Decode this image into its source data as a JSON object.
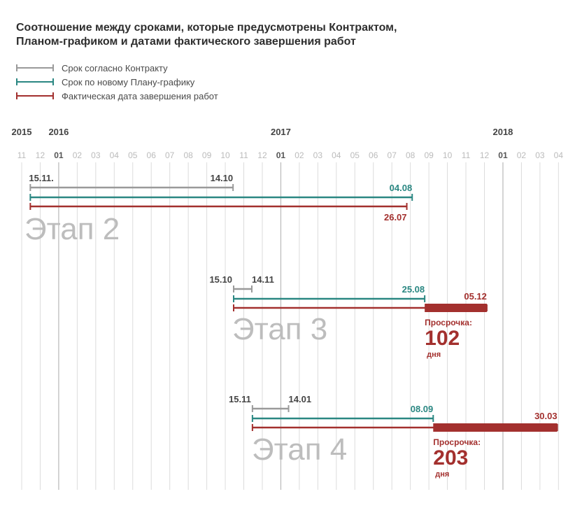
{
  "title_lines": [
    "Соотношение между сроками, которые предусмотрены Контрактом,",
    "Планом-графиком и датами фактического завершения работ"
  ],
  "colors": {
    "contract": "#9a9a9a",
    "plan": "#2a8782",
    "actual": "#a3302e",
    "grid": "#dcdcdc",
    "month": "#bbbbbb",
    "year": "#444444",
    "stage": "#bdbdbd"
  },
  "chart_data": {
    "type": "gantt",
    "title": "Соотношение между сроками, которые предусмотрены Контрактом, Планом-графиком и датами фактического завершения работ",
    "legend": [
      {
        "key": "contract",
        "label": "Срок согласно Контракту"
      },
      {
        "key": "plan",
        "label": "Срок по новому Плану-графику"
      },
      {
        "key": "actual",
        "label": "Фактическая дата завершения работ"
      }
    ],
    "legend_position": "top-left",
    "x_axis": {
      "start": "2015-11-01",
      "end": "2018-04-01",
      "year_labels": [
        {
          "label": "2015",
          "date": "2015-11-01"
        },
        {
          "label": "2016",
          "date": "2016-01-01"
        },
        {
          "label": "2017",
          "date": "2017-01-01"
        },
        {
          "label": "2018",
          "date": "2018-01-01"
        }
      ],
      "month_ticks": [
        {
          "label": "11",
          "date": "2015-11-01",
          "jan": false
        },
        {
          "label": "12",
          "date": "2015-12-01",
          "jan": false
        },
        {
          "label": "01",
          "date": "2016-01-01",
          "jan": true
        },
        {
          "label": "02",
          "date": "2016-02-01",
          "jan": false
        },
        {
          "label": "03",
          "date": "2016-03-01",
          "jan": false
        },
        {
          "label": "04",
          "date": "2016-04-01",
          "jan": false
        },
        {
          "label": "05",
          "date": "2016-05-01",
          "jan": false
        },
        {
          "label": "06",
          "date": "2016-06-01",
          "jan": false
        },
        {
          "label": "07",
          "date": "2016-07-01",
          "jan": false
        },
        {
          "label": "08",
          "date": "2016-08-01",
          "jan": false
        },
        {
          "label": "09",
          "date": "2016-09-01",
          "jan": false
        },
        {
          "label": "10",
          "date": "2016-10-01",
          "jan": false
        },
        {
          "label": "11",
          "date": "2016-11-01",
          "jan": false
        },
        {
          "label": "12",
          "date": "2016-12-01",
          "jan": false
        },
        {
          "label": "01",
          "date": "2017-01-01",
          "jan": true
        },
        {
          "label": "02",
          "date": "2017-02-01",
          "jan": false
        },
        {
          "label": "03",
          "date": "2017-03-01",
          "jan": false
        },
        {
          "label": "04",
          "date": "2017-04-01",
          "jan": false
        },
        {
          "label": "05",
          "date": "2017-05-01",
          "jan": false
        },
        {
          "label": "06",
          "date": "2017-06-01",
          "jan": false
        },
        {
          "label": "07",
          "date": "2017-07-01",
          "jan": false
        },
        {
          "label": "08",
          "date": "2017-08-01",
          "jan": false
        },
        {
          "label": "09",
          "date": "2017-09-01",
          "jan": false
        },
        {
          "label": "10",
          "date": "2017-10-01",
          "jan": false
        },
        {
          "label": "11",
          "date": "2017-11-01",
          "jan": false
        },
        {
          "label": "12",
          "date": "2017-12-01",
          "jan": false
        },
        {
          "label": "01",
          "date": "2018-01-01",
          "jan": true
        },
        {
          "label": "02",
          "date": "2018-02-01",
          "jan": false
        },
        {
          "label": "03",
          "date": "2018-03-01",
          "jan": false
        },
        {
          "label": "04",
          "date": "2018-04-01",
          "jan": false
        }
      ],
      "grid": true
    },
    "stages": [
      {
        "name": "Этап 2",
        "contract": {
          "start": "2015-11-15",
          "end": "2016-10-14",
          "start_label": "15.11.",
          "end_label": "14.10"
        },
        "plan": {
          "start": "2015-11-15",
          "end": "2017-08-04",
          "end_label": "04.08"
        },
        "actual": {
          "start": "2015-11-15",
          "end": "2017-07-26",
          "end_label": "26.07"
        },
        "delay": null
      },
      {
        "name": "Этап 3",
        "contract": {
          "start": "2016-10-15",
          "end": "2016-11-14",
          "start_label": "15.10",
          "end_label": "14.11"
        },
        "plan": {
          "start": "2016-10-15",
          "end": "2017-08-25",
          "end_label": "25.08"
        },
        "actual": {
          "start": "2016-10-15",
          "end": "2017-12-05",
          "end_label": "05.12"
        },
        "delay": {
          "from": "2017-08-25",
          "to": "2017-12-05",
          "label": "Просрочка:",
          "days": "102",
          "unit": "дня"
        }
      },
      {
        "name": "Этап 4",
        "contract": {
          "start": "2016-11-15",
          "end": "2017-01-14",
          "start_label": "15.11",
          "end_label": "14.01"
        },
        "plan": {
          "start": "2016-11-15",
          "end": "2017-09-08",
          "end_label": "08.09"
        },
        "actual": {
          "start": "2016-11-15",
          "end": "2018-03-30",
          "end_label": "30.03"
        },
        "delay": {
          "from": "2017-09-08",
          "to": "2018-03-30",
          "label": "Просрочка:",
          "days": "203",
          "unit": "дня"
        }
      }
    ]
  }
}
